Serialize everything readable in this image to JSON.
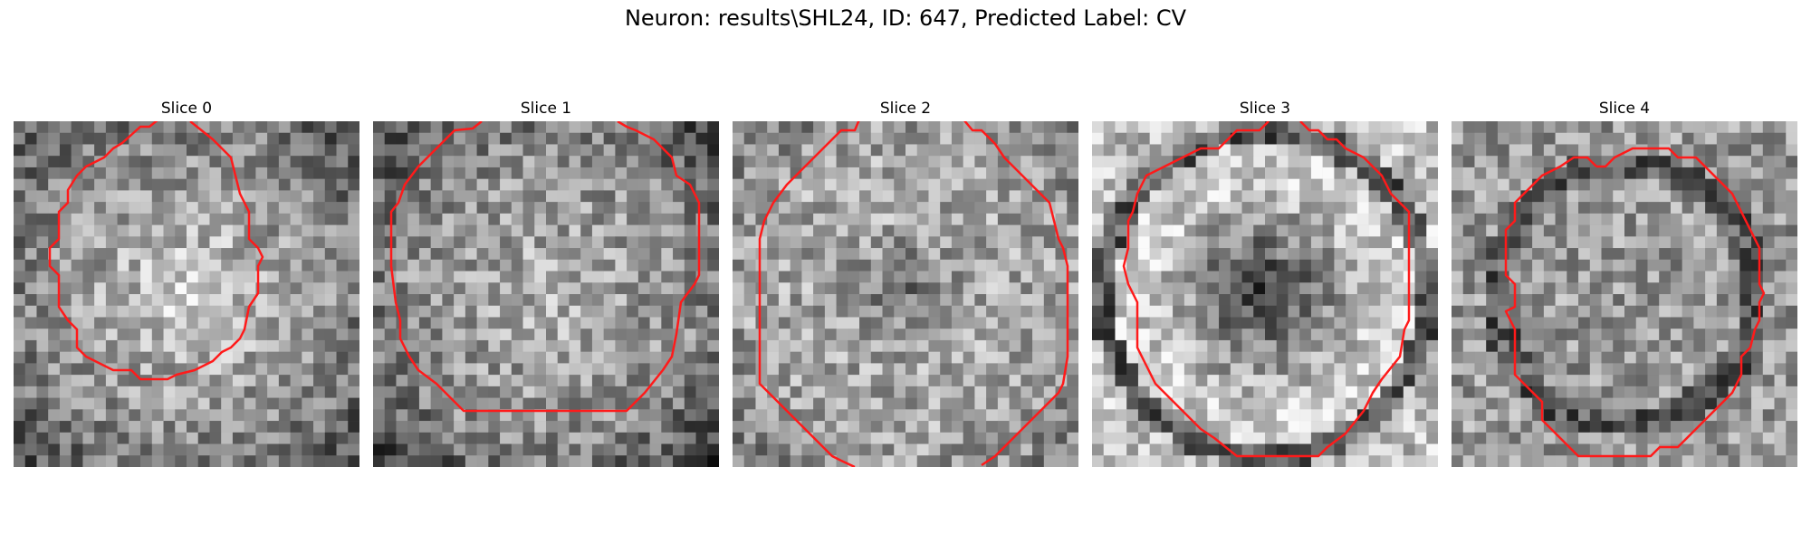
{
  "figure": {
    "title": "Neuron: results\\SHL24, ID: 647, Predicted Label: CV"
  },
  "slices": [
    {
      "label": "Slice 0",
      "pattern": "bright-center"
    },
    {
      "label": "Slice 1",
      "pattern": "noisy-bright-center"
    },
    {
      "label": "Slice 2",
      "pattern": "dark-center"
    },
    {
      "label": "Slice 3",
      "pattern": "ring-dark-core"
    },
    {
      "label": "Slice 4",
      "pattern": "ring-noisy"
    }
  ],
  "colors": {
    "contour": "#ff1a1a",
    "background": "#ffffff"
  }
}
